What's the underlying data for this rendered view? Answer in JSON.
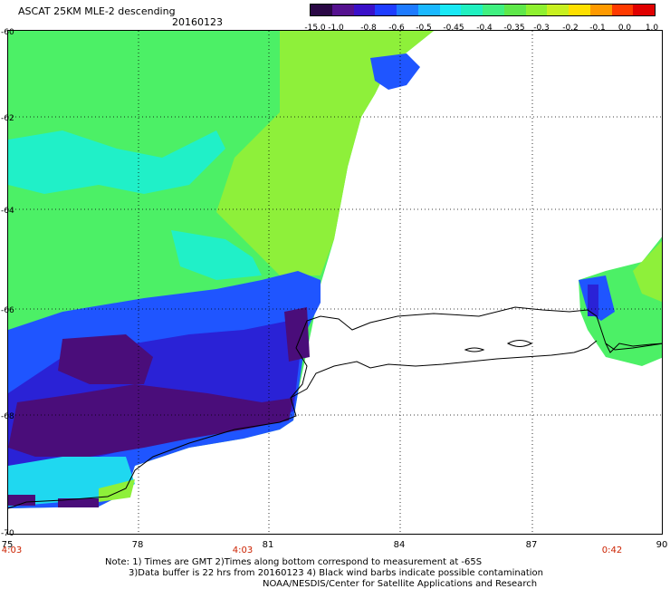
{
  "title": "ASCAT 25KM MLE-2 descending",
  "date": "20160123",
  "colorbar": {
    "labels": [
      "-15.0",
      "-1.0",
      "-0.8",
      "-0.6",
      "-0.5",
      "-0.45",
      "-0.4",
      "-0.35",
      "-0.3",
      "-0.2",
      "-0.1",
      "0.0",
      "1.0"
    ],
    "colors": [
      "#2a0845",
      "#55128f",
      "#3a10c8",
      "#1f3dff",
      "#1e7bff",
      "#1ab8ff",
      "#19e8f5",
      "#20f0c0",
      "#40f080",
      "#5fe84a",
      "#8ff030",
      "#c8f020",
      "#ffe000",
      "#ff9a00",
      "#ff3a00",
      "#e00000"
    ]
  },
  "map": {
    "lat_labels": [
      "-60",
      "-62",
      "-64",
      "-66",
      "-68",
      "-70"
    ],
    "lon_labels": [
      "75",
      "78",
      "81",
      "84",
      "87",
      "90"
    ],
    "times": [
      "4:03",
      "4:03",
      "0:42"
    ],
    "swath_colors": {
      "dark": "#4a0d7a",
      "deep_blue": "#2a22d6",
      "blue": "#1f55ff",
      "cyan": "#1fd8f0",
      "aqua": "#20f0c8",
      "green": "#4cf066",
      "lime": "#8ef03a"
    }
  },
  "notes": [
    "Note: 1) Times are GMT 2)Times along bottom correspond to measurement at -65S",
    "3)Data buffer is 22 hrs from 20160123 4) Black wind barbs indicate possible contamination",
    "NOAA/NESDIS/Center for Satellite Applications and Research"
  ]
}
